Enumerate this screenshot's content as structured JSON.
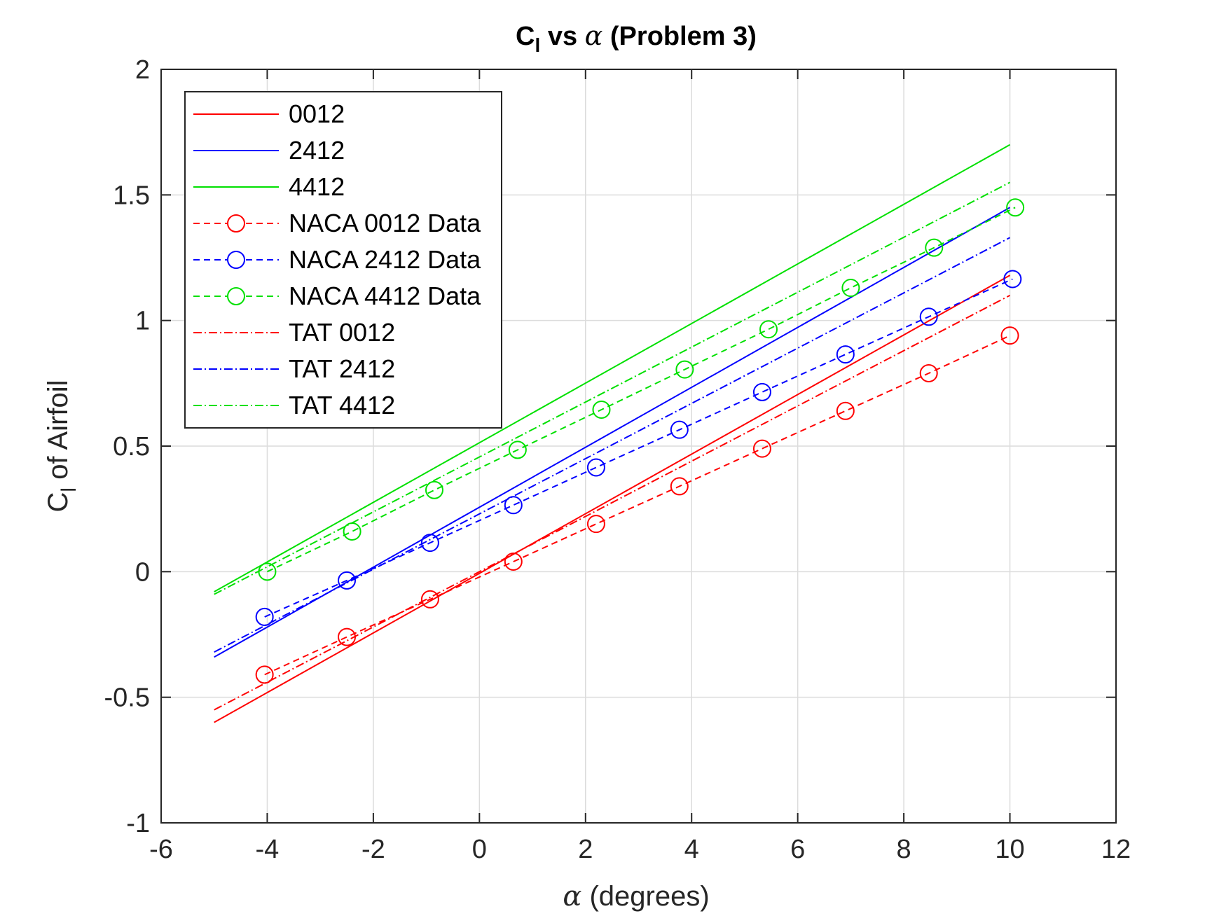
{
  "chart_data": {
    "type": "line",
    "title": {
      "main": "C",
      "subscript": "l",
      "middle": " vs ",
      "greek": "α",
      "end": " (Problem 3)"
    },
    "xlabel": {
      "greek": "α",
      "text": " (degrees)"
    },
    "ylabel": {
      "main": "C",
      "subscript": "l",
      "text": " of Airfoil"
    },
    "xlim": [
      -6,
      12
    ],
    "ylim": [
      -1,
      2
    ],
    "x_ticks": [
      -6,
      -4,
      -2,
      0,
      2,
      4,
      6,
      8,
      10,
      12
    ],
    "x_tick_labels": [
      "-6",
      "-4",
      "-2",
      "0",
      "2",
      "4",
      "6",
      "8",
      "10",
      "12"
    ],
    "y_ticks": [
      -1,
      -0.5,
      0,
      0.5,
      1,
      1.5,
      2
    ],
    "y_tick_labels": [
      "-1",
      "-0.5",
      "0",
      "0.5",
      "1",
      "1.5",
      "2"
    ],
    "grid": true,
    "legend_position": "top-left",
    "series": [
      {
        "name": "0012",
        "color": "#ff0000",
        "style": "solid",
        "marker": "none",
        "x": [
          -5,
          10
        ],
        "y": [
          -0.6,
          1.18
        ]
      },
      {
        "name": "2412",
        "color": "#0000ff",
        "style": "solid",
        "marker": "none",
        "x": [
          -5,
          10
        ],
        "y": [
          -0.34,
          1.45
        ]
      },
      {
        "name": "4412",
        "color": "#00e000",
        "style": "solid",
        "marker": "none",
        "x": [
          -5,
          10
        ],
        "y": [
          -0.08,
          1.7
        ]
      },
      {
        "name": "NACA 0012 Data",
        "color": "#ff0000",
        "style": "dashed",
        "marker": "circle",
        "x": [
          -4.05,
          -2.5,
          -0.93,
          0.64,
          2.2,
          3.77,
          5.33,
          6.9,
          8.47,
          10.0
        ],
        "y": [
          -0.41,
          -0.26,
          -0.11,
          0.04,
          0.19,
          0.34,
          0.49,
          0.64,
          0.79,
          0.94
        ]
      },
      {
        "name": "NACA 2412 Data",
        "color": "#0000ff",
        "style": "dashed",
        "marker": "circle",
        "x": [
          -4.05,
          -2.5,
          -0.93,
          0.64,
          2.2,
          3.77,
          5.33,
          6.9,
          8.47,
          10.05
        ],
        "y": [
          -0.18,
          -0.035,
          0.115,
          0.265,
          0.415,
          0.565,
          0.715,
          0.865,
          1.015,
          1.165
        ]
      },
      {
        "name": "NACA 4412 Data",
        "color": "#00e000",
        "style": "dashed",
        "marker": "circle",
        "x": [
          -4.0,
          -2.4,
          -0.85,
          0.72,
          2.3,
          3.87,
          5.45,
          7.0,
          8.57,
          10.1
        ],
        "y": [
          0.0,
          0.16,
          0.325,
          0.485,
          0.645,
          0.805,
          0.965,
          1.13,
          1.29,
          1.45
        ]
      },
      {
        "name": "TAT 0012",
        "color": "#ff0000",
        "style": "dashdot",
        "marker": "none",
        "x": [
          -5,
          10
        ],
        "y": [
          -0.55,
          1.1
        ]
      },
      {
        "name": "TAT 2412",
        "color": "#0000ff",
        "style": "dashdot",
        "marker": "none",
        "x": [
          -5,
          10
        ],
        "y": [
          -0.32,
          1.33
        ]
      },
      {
        "name": "TAT 4412",
        "color": "#00e000",
        "style": "dashdot",
        "marker": "none",
        "x": [
          -5,
          10
        ],
        "y": [
          -0.09,
          1.55
        ]
      }
    ]
  }
}
